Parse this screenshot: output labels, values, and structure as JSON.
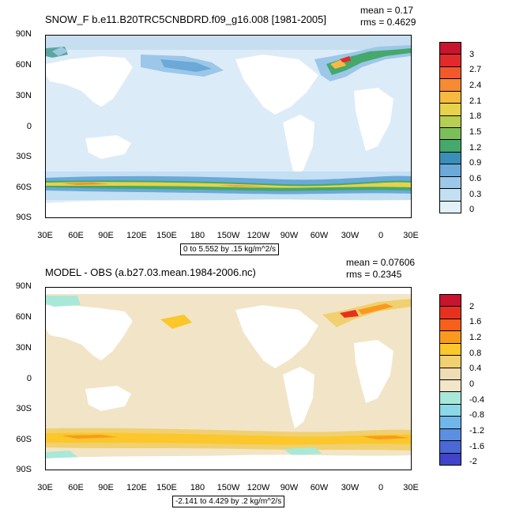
{
  "panel1": {
    "title": "SNOW_F b.e11.B20TRC5CNBDRD.f09_g16.008 [1981-2005]",
    "mean_label": "mean = 0.17",
    "rms_label": "rms = 0.4629",
    "range_label": "0 to 5.552 by .15 kg/m^2/s",
    "colorbar_labels": [
      "3",
      "2.7",
      "2.4",
      "2.1",
      "1.8",
      "1.5",
      "1.2",
      "0.9",
      "0.6",
      "0.3",
      "0"
    ],
    "colorbar_colors": [
      "#c8142d",
      "#e32a2a",
      "#f2592a",
      "#f78a33",
      "#f9b941",
      "#e7d24a",
      "#b6cf52",
      "#7cbf5a",
      "#45a86c",
      "#3a8fb8",
      "#6aa9d8",
      "#9cc7e8",
      "#c3dff2",
      "#e2f0fa"
    ]
  },
  "panel2": {
    "title": "MODEL - OBS (a.b27.03.mean.1984-2006.nc)",
    "mean_label": "mean = 0.07606",
    "rms_label": "rms = 0.2345",
    "range_label": "-2.141 to 4.429 by .2 kg/m^2/s",
    "colorbar_labels": [
      "2",
      "1.6",
      "1.2",
      "0.8",
      "0.4",
      "0",
      "-0.4",
      "-0.8",
      "-1.2",
      "-1.6",
      "-2"
    ],
    "colorbar_colors": [
      "#c8142d",
      "#e8301e",
      "#f7601a",
      "#f99a1d",
      "#fbc72a",
      "#f0d070",
      "#eedcb4",
      "#f2e6c8",
      "#a8e8d8",
      "#8ad8e8",
      "#6fb6ea",
      "#5b8fe2",
      "#4b68d6",
      "#3f44c8"
    ]
  },
  "axes": {
    "lat_labels": [
      "90N",
      "60N",
      "30N",
      "0",
      "30S",
      "60S",
      "90S"
    ],
    "lon_labels": [
      "30E",
      "60E",
      "90E",
      "120E",
      "150E",
      "180",
      "150W",
      "120W",
      "90W",
      "60W",
      "30W",
      "0",
      "30E"
    ]
  }
}
